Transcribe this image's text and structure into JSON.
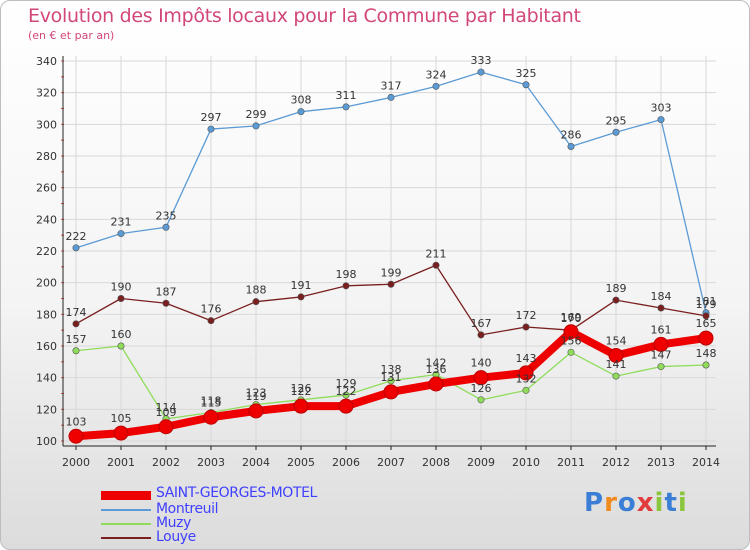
{
  "title": "Evolution des Impôts locaux pour la Commune par Habitant",
  "subtitle": "(en € et par an)",
  "logo": {
    "text": "Proxiti"
  },
  "chart_data": {
    "type": "line",
    "x": [
      2000,
      2001,
      2002,
      2003,
      2004,
      2005,
      2006,
      2007,
      2008,
      2009,
      2010,
      2011,
      2012,
      2013,
      2014
    ],
    "ylim": [
      100,
      340
    ],
    "yticks": [
      100,
      120,
      140,
      160,
      180,
      200,
      220,
      240,
      260,
      280,
      300,
      320,
      340
    ],
    "grid": true,
    "legend_position": "bottom-left",
    "series": [
      {
        "name": "SAINT-GEORGES-MOTEL",
        "color": "#ee0000",
        "values": [
          103,
          105,
          109,
          115,
          119,
          122,
          122,
          131,
          136,
          140,
          143,
          169,
          154,
          161,
          165
        ]
      },
      {
        "name": "Montreuil",
        "color": "#5b9bd5",
        "values": [
          222,
          231,
          235,
          297,
          299,
          308,
          311,
          317,
          324,
          333,
          325,
          286,
          295,
          303,
          181
        ]
      },
      {
        "name": "Muzy",
        "color": "#8fdc5a",
        "values": [
          157,
          160,
          114,
          118,
          123,
          126,
          129,
          138,
          142,
          126,
          132,
          156,
          141,
          147,
          148
        ]
      },
      {
        "name": "Louye",
        "color": "#7a1f1f",
        "values": [
          174,
          190,
          187,
          176,
          188,
          191,
          198,
          199,
          211,
          167,
          172,
          170,
          189,
          184,
          179
        ]
      }
    ]
  }
}
